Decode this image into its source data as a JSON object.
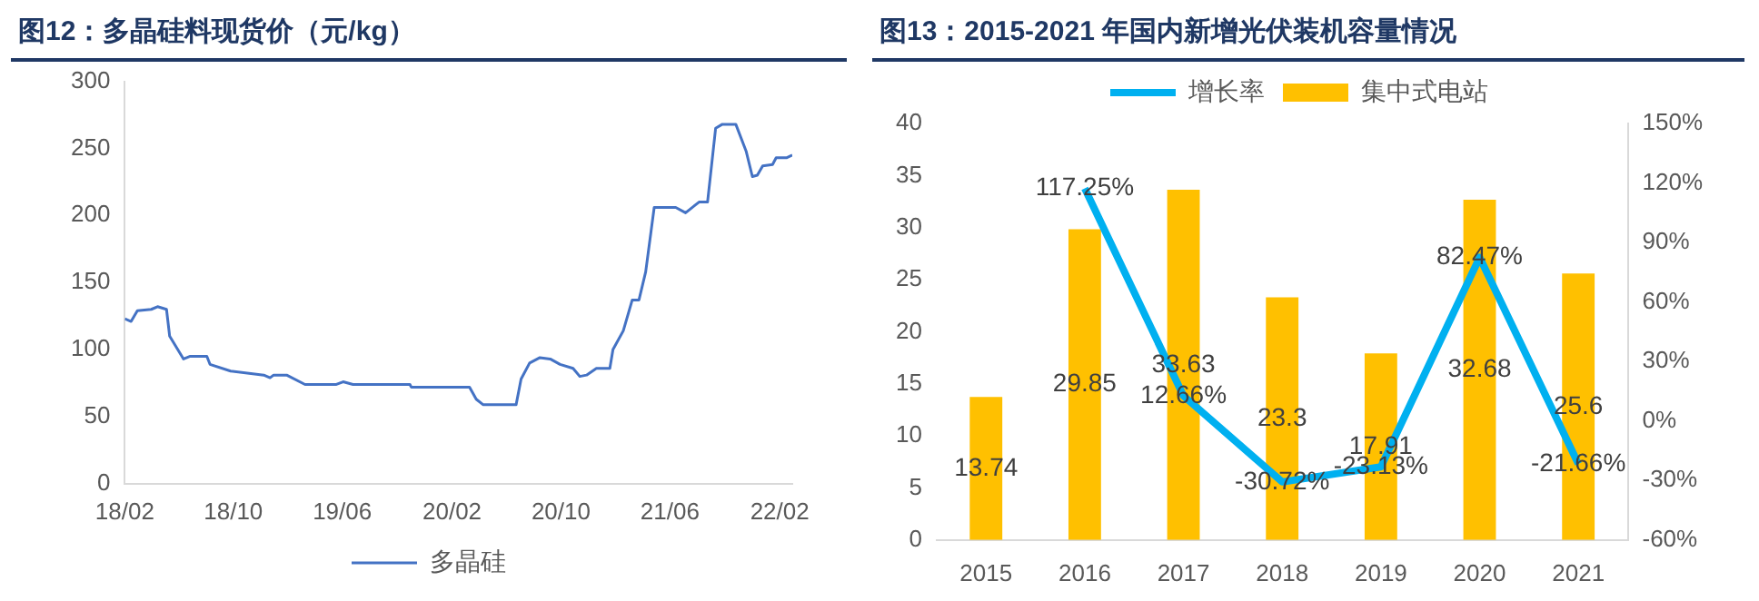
{
  "chart_data": [
    {
      "type": "line",
      "title": "图12：多晶硅料现货价（元/kg）",
      "legend": "bottom",
      "grid": false,
      "marker": "none",
      "line_style": "solid",
      "xlim": [
        "2018-02",
        "2022-03"
      ],
      "xticks": [
        {
          "value": "2018-02",
          "label": "18/02"
        },
        {
          "value": "2018-10",
          "label": "18/10"
        },
        {
          "value": "2019-06",
          "label": "19/06"
        },
        {
          "value": "2020-02",
          "label": "20/02"
        },
        {
          "value": "2020-10",
          "label": "20/10"
        },
        {
          "value": "2021-06",
          "label": "21/06"
        },
        {
          "value": "2022-02",
          "label": "22/02"
        }
      ],
      "ylim": [
        0,
        300
      ],
      "yticks": [
        0,
        50,
        100,
        150,
        200,
        250,
        300
      ],
      "series": [
        {
          "name": "多晶硅",
          "color": "#4472c4",
          "x": [
            "2018-02-01",
            "2018-02-15",
            "2018-03-01",
            "2018-04-01",
            "2018-04-15",
            "2018-05-05",
            "2018-05-12",
            "2018-06-12",
            "2018-06-27",
            "2018-08-03",
            "2018-08-10",
            "2018-09-25",
            "2018-12-08",
            "2018-12-22",
            "2018-12-30",
            "2019-01-28",
            "2019-03-10",
            "2019-05-19",
            "2019-06-03",
            "2019-06-25",
            "2019-10-30",
            "2019-11-02",
            "2020-03-11",
            "2020-03-26",
            "2020-04-10",
            "2020-06-23",
            "2020-07-04",
            "2020-07-23",
            "2020-08-15",
            "2020-09-07",
            "2020-09-29",
            "2020-10-28",
            "2020-11-12",
            "2020-11-27",
            "2020-12-19",
            "2021-01-18",
            "2021-01-25",
            "2021-02-17",
            "2021-03-09",
            "2021-03-24",
            "2021-04-08",
            "2021-04-27",
            "2021-06-14",
            "2021-07-06",
            "2021-08-05",
            "2021-08-24",
            "2021-09-11",
            "2021-09-26",
            "2021-10-26",
            "2021-11-18",
            "2021-12-02",
            "2021-12-13",
            "2021-12-25",
            "2022-01-16",
            "2022-01-24",
            "2022-02-16",
            "2022-03-01"
          ],
          "values": [
            123,
            121,
            129,
            130,
            132,
            130,
            110,
            93,
            95,
            95,
            89,
            84,
            81,
            79,
            81,
            81,
            74,
            74,
            76,
            74,
            74,
            72,
            72,
            63,
            59,
            59,
            78,
            90,
            94,
            93,
            89,
            86,
            80,
            81,
            86,
            86,
            100,
            114,
            137,
            137,
            158,
            206,
            206,
            202,
            210,
            210,
            265,
            268,
            268,
            248,
            229,
            230,
            237,
            238,
            243,
            243,
            245
          ]
        }
      ]
    },
    {
      "type": "bar",
      "title": "图13：2015-2021 年国内新增光伏装机容量情况",
      "legend": "top",
      "grid": false,
      "categories": [
        "2015",
        "2016",
        "2017",
        "2018",
        "2019",
        "2020",
        "2021"
      ],
      "ylim": [
        0,
        40
      ],
      "yticks": [
        0,
        5,
        10,
        15,
        20,
        25,
        30,
        35,
        40
      ],
      "y2lim": [
        -60,
        150
      ],
      "y2ticks": [
        {
          "value": -60,
          "label": "-60%"
        },
        {
          "value": -30,
          "label": "-30%"
        },
        {
          "value": 0,
          "label": "0%"
        },
        {
          "value": 30,
          "label": "30%"
        },
        {
          "value": 60,
          "label": "60%"
        },
        {
          "value": 90,
          "label": "90%"
        },
        {
          "value": 120,
          "label": "120%"
        },
        {
          "value": 150,
          "label": "150%"
        }
      ],
      "series": [
        {
          "name": "集中式电站",
          "type": "bar",
          "color": "#ffc000",
          "values": [
            13.74,
            29.85,
            33.63,
            23.3,
            17.91,
            32.68,
            25.6
          ],
          "value_labels": [
            "13.74",
            "29.85",
            "33.63",
            "23.3",
            "17.91",
            "32.68",
            "25.6"
          ]
        },
        {
          "name": "增长率",
          "type": "line",
          "axis": "y2",
          "color": "#00b0f0",
          "values": [
            null,
            117.25,
            12.66,
            -30.72,
            -23.13,
            82.47,
            -21.66
          ],
          "value_labels": [
            null,
            "117.25%",
            "12.66%",
            "-30.72%",
            "-23.13%",
            "82.47%",
            "-21.66%"
          ]
        }
      ]
    }
  ]
}
